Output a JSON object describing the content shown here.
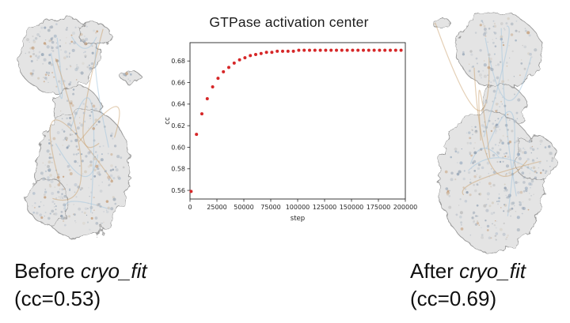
{
  "slide": {
    "background": "#ffffff"
  },
  "chart_data": {
    "type": "scatter",
    "title": "GTPase activation center",
    "xlabel": "step",
    "ylabel": "cc",
    "xlim": [
      0,
      200000
    ],
    "ylim": [
      0.552,
      0.697
    ],
    "x_ticks": [
      0,
      25000,
      50000,
      75000,
      100000,
      125000,
      150000,
      175000,
      200000
    ],
    "y_ticks": [
      "0.56",
      "0.58",
      "0.60",
      "0.62",
      "0.64",
      "0.66",
      "0.68"
    ],
    "grid": false,
    "legend": null,
    "marker_color": "#d62728",
    "x": [
      1000,
      6000,
      11000,
      16000,
      21000,
      26000,
      31000,
      36000,
      41000,
      46000,
      51000,
      56000,
      61000,
      66000,
      71000,
      76000,
      81000,
      86000,
      91000,
      96000,
      101000,
      106000,
      111000,
      116000,
      121000,
      126000,
      131000,
      136000,
      141000,
      146000,
      151000,
      156000,
      161000,
      166000,
      171000,
      176000,
      181000,
      186000,
      191000,
      196000
    ],
    "y": [
      0.559,
      0.612,
      0.631,
      0.645,
      0.656,
      0.664,
      0.67,
      0.674,
      0.678,
      0.681,
      0.683,
      0.685,
      0.686,
      0.687,
      0.688,
      0.688,
      0.689,
      0.689,
      0.689,
      0.689,
      0.69,
      0.69,
      0.69,
      0.69,
      0.69,
      0.69,
      0.69,
      0.69,
      0.69,
      0.69,
      0.69,
      0.69,
      0.69,
      0.69,
      0.69,
      0.69,
      0.69,
      0.69,
      0.69,
      0.69
    ]
  },
  "captions": {
    "before": {
      "prefix": "Before ",
      "name": "cryo_fit",
      "cc": "(cc=0.53)"
    },
    "after": {
      "prefix": "After ",
      "name": "cryo_fit",
      "cc": "(cc=0.69)"
    }
  }
}
